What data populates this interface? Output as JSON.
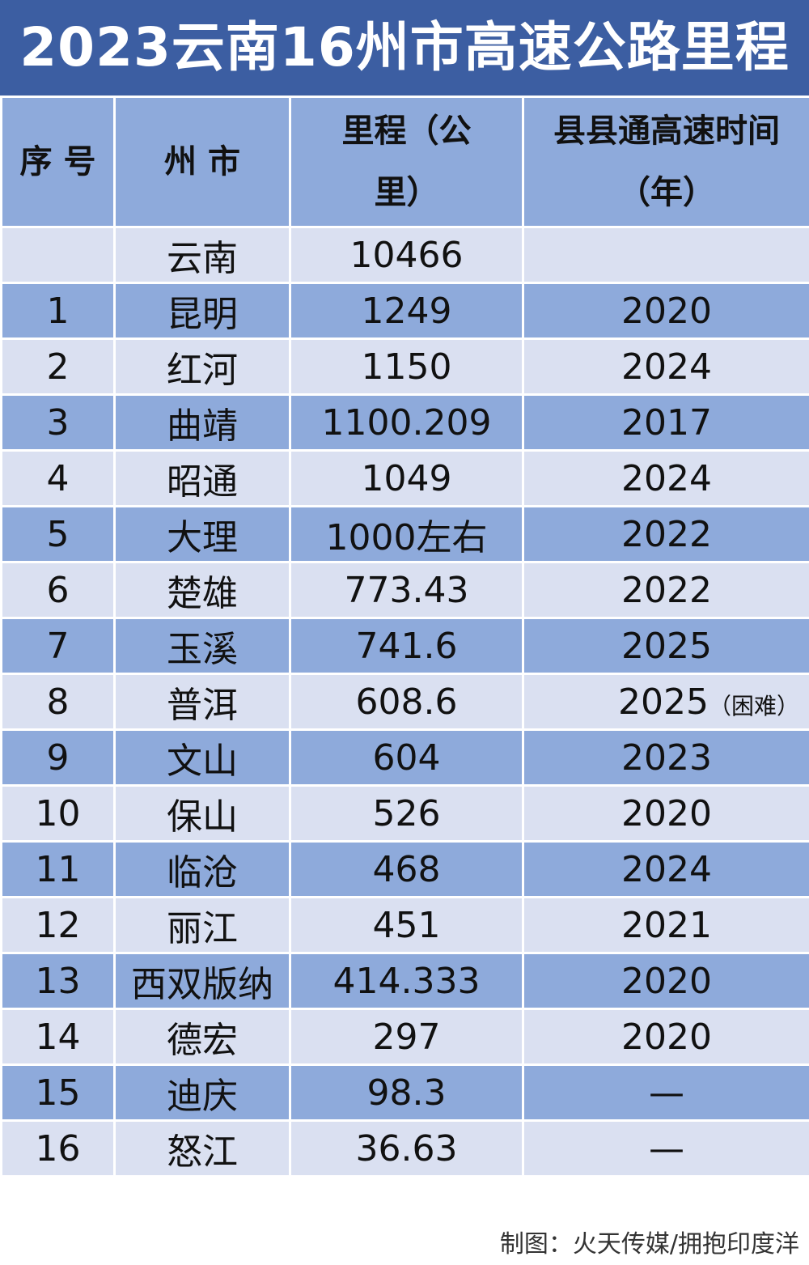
{
  "title": "2023云南16州市高速公路里程",
  "chart_data": {
    "type": "table",
    "title": "2023云南16州市高速公路里程",
    "columns": [
      "序 号",
      "州 市",
      "里程（公里）",
      "县县通高速时间（年）"
    ],
    "header": {
      "index": "序 号",
      "city": "州 市",
      "mileage_line1": "里程",
      "mileage_line2": "（公里）",
      "year_line1": "县县通高速时间",
      "year_line2": "（年）"
    },
    "rows": [
      {
        "index": "",
        "city": "云南",
        "mileage": "10466",
        "year": "",
        "note": ""
      },
      {
        "index": "1",
        "city": "昆明",
        "mileage": "1249",
        "year": "2020",
        "note": ""
      },
      {
        "index": "2",
        "city": "红河",
        "mileage": "1150",
        "year": "2024",
        "note": ""
      },
      {
        "index": "3",
        "city": "曲靖",
        "mileage": "1100.209",
        "year": "2017",
        "note": ""
      },
      {
        "index": "4",
        "city": "昭通",
        "mileage": "1049",
        "year": "2024",
        "note": ""
      },
      {
        "index": "5",
        "city": "大理",
        "mileage": "1000左右",
        "year": "2022",
        "note": ""
      },
      {
        "index": "6",
        "city": "楚雄",
        "mileage": "773.43",
        "year": "2022",
        "note": ""
      },
      {
        "index": "7",
        "city": "玉溪",
        "mileage": "741.6",
        "year": "2025",
        "note": ""
      },
      {
        "index": "8",
        "city": "普洱",
        "mileage": "608.6",
        "year": "2025",
        "note": "（困难）"
      },
      {
        "index": "9",
        "city": "文山",
        "mileage": "604",
        "year": "2023",
        "note": ""
      },
      {
        "index": "10",
        "city": "保山",
        "mileage": "526",
        "year": "2020",
        "note": ""
      },
      {
        "index": "11",
        "city": "临沧",
        "mileage": "468",
        "year": "2024",
        "note": ""
      },
      {
        "index": "12",
        "city": "丽江",
        "mileage": "451",
        "year": "2021",
        "note": ""
      },
      {
        "index": "13",
        "city": "西双版纳",
        "mileage": "414.333",
        "year": "2020",
        "note": ""
      },
      {
        "index": "14",
        "city": "德宏",
        "mileage": "297",
        "year": "2020",
        "note": ""
      },
      {
        "index": "15",
        "city": "迪庆",
        "mileage": "98.3",
        "year": "—",
        "note": ""
      },
      {
        "index": "16",
        "city": "怒江",
        "mileage": "36.63",
        "year": "—",
        "note": ""
      }
    ]
  },
  "footer": "制图：火天传媒/拥抱印度洋",
  "colors": {
    "title_bg": "#3c5ea2",
    "header_bg": "#8eaadb",
    "row_dark": "#8eaadb",
    "row_light": "#dae0f1"
  }
}
